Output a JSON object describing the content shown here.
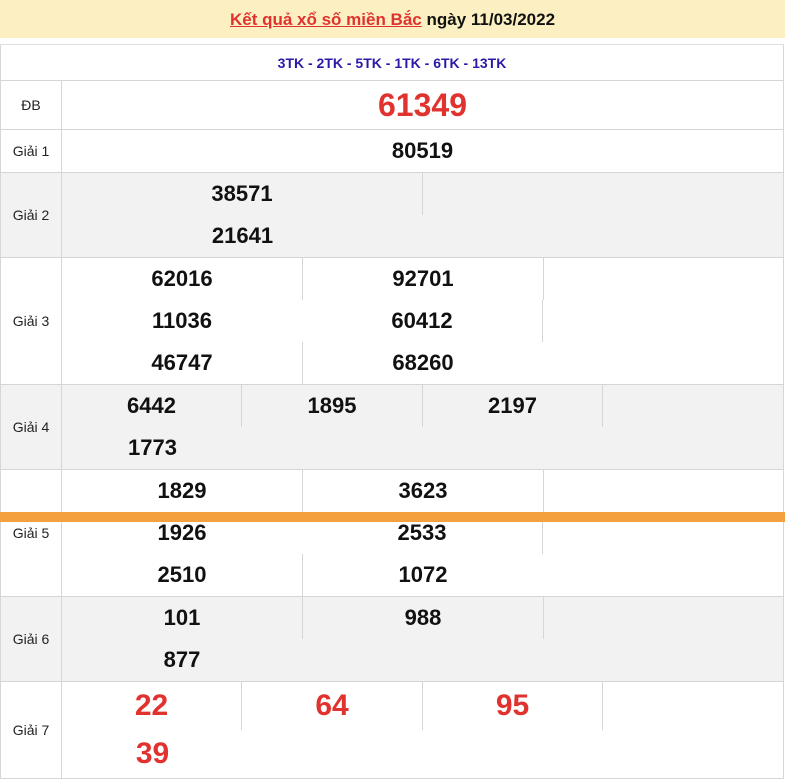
{
  "header": {
    "title_link": "Kết quả xổ số miền Bắc",
    "date_text": "ngày 11/03/2022"
  },
  "codes": "3TK - 2TK - 5TK - 1TK - 6TK - 13TK",
  "prizes": {
    "db": {
      "label": "ĐB",
      "numbers": [
        "61349"
      ]
    },
    "g1": {
      "label": "Giải 1",
      "numbers": [
        "80519"
      ]
    },
    "g2": {
      "label": "Giải 2",
      "numbers": [
        "38571",
        "21641"
      ]
    },
    "g3": {
      "label": "Giải 3",
      "numbers": [
        "62016",
        "92701",
        "11036",
        "60412",
        "46747",
        "68260"
      ]
    },
    "g4": {
      "label": "Giải 4",
      "numbers": [
        "6442",
        "1895",
        "2197",
        "1773"
      ]
    },
    "g5": {
      "label": "Giải 5",
      "numbers": [
        "1829",
        "3623",
        "1926",
        "2533",
        "2510",
        "1072"
      ]
    },
    "g6": {
      "label": "Giải 6",
      "numbers": [
        "101",
        "988",
        "877"
      ]
    },
    "g7": {
      "label": "Giải 7",
      "numbers": [
        "22",
        "64",
        "95",
        "39"
      ]
    }
  },
  "colors": {
    "accent_red": "#e0332f",
    "code_blue": "#2a1aa8",
    "header_bg": "#fcf0c3",
    "footer_orange": "#f3a03f"
  }
}
